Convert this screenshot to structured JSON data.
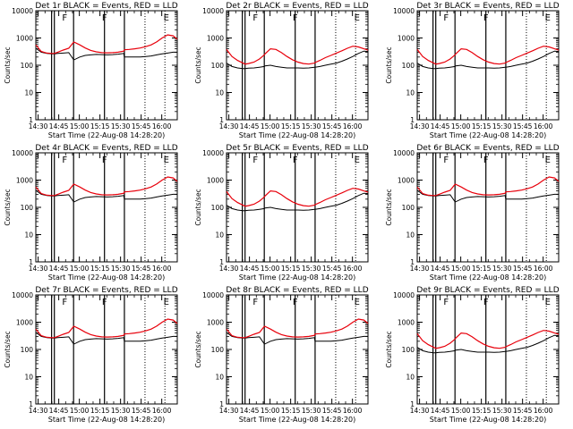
{
  "chart_data": {
    "type": "line",
    "grid_rows": 3,
    "grid_cols": 3,
    "shared": {
      "ylabel": "Counts/sec",
      "xlabel": "Start Time (22-Aug-08 14:28:20)",
      "xticks": [
        "14:30",
        "14:45",
        "15:00",
        "15:15",
        "15:30",
        "15:45",
        "16:00"
      ],
      "xlim": [
        0,
        103
      ],
      "ylim": [
        1,
        10000
      ],
      "yscale": "log",
      "yticks": [
        "1",
        "10",
        "100",
        "1000",
        "10000"
      ],
      "series_colors": {
        "events": "#000000",
        "lld": "#e8000b"
      },
      "markers": {
        "solid": [
          11.5,
          13.5,
          27.5,
          50,
          64.5
        ],
        "dotted": [
          79.5,
          94
        ],
        "letters": [
          {
            "t": "F",
            "x": 21
          },
          {
            "t": "F",
            "x": 50
          },
          {
            "t": "E",
            "x": 95
          }
        ]
      }
    },
    "panels": [
      {
        "title": "Det 1r BLACK = Events, RED = LLD"
      },
      {
        "title": "Det 2r BLACK = Events, RED = LLD"
      },
      {
        "title": "Det 3r BLACK = Events, RED = LLD"
      },
      {
        "title": "Det 4r BLACK = Events, RED = LLD"
      },
      {
        "title": "Det 5r BLACK = Events, RED = LLD"
      },
      {
        "title": "Det 6r BLACK = Events, RED = LLD"
      },
      {
        "title": "Det 7r BLACK = Events, RED = LLD"
      },
      {
        "title": "Det 8r BLACK = Events, RED = LLD"
      },
      {
        "title": "Det 9r BLACK = Events, RED = LLD"
      }
    ],
    "series": {
      "x": [
        0,
        4,
        8,
        12,
        13.5,
        16,
        20,
        24,
        27.5,
        28,
        32,
        36,
        40,
        44,
        48,
        52,
        56,
        60,
        64,
        64.5,
        68,
        72,
        76,
        80,
        84,
        88,
        92,
        96,
        100,
        103
      ],
      "variants": {
        "A_events": [
          420,
          300,
          270,
          260,
          260,
          270,
          280,
          290,
          160,
          160,
          200,
          230,
          240,
          250,
          245,
          240,
          245,
          255,
          270,
          200,
          200,
          200,
          200,
          210,
          220,
          240,
          260,
          280,
          300,
          300
        ],
        "A_lld": [
          560,
          320,
          280,
          270,
          270,
          300,
          360,
          420,
          700,
          700,
          560,
          430,
          350,
          310,
          290,
          285,
          290,
          300,
          330,
          370,
          380,
          400,
          430,
          480,
          560,
          720,
          1000,
          1300,
          1200,
          900
        ],
        "B_events": [
          120,
          90,
          80,
          75,
          75,
          78,
          80,
          85,
          90,
          95,
          100,
          90,
          85,
          80,
          80,
          80,
          78,
          80,
          85,
          85,
          90,
          100,
          110,
          120,
          140,
          170,
          210,
          270,
          330,
          320
        ],
        "B_lld": [
          380,
          210,
          150,
          120,
          110,
          115,
          130,
          170,
          240,
          260,
          400,
          380,
          290,
          210,
          160,
          130,
          115,
          110,
          120,
          125,
          150,
          190,
          230,
          280,
          340,
          420,
          500,
          470,
          400,
          360
        ]
      },
      "panel_variants": [
        "A",
        "B",
        "B",
        "A",
        "B",
        "A",
        "A",
        "A",
        "B"
      ]
    }
  }
}
